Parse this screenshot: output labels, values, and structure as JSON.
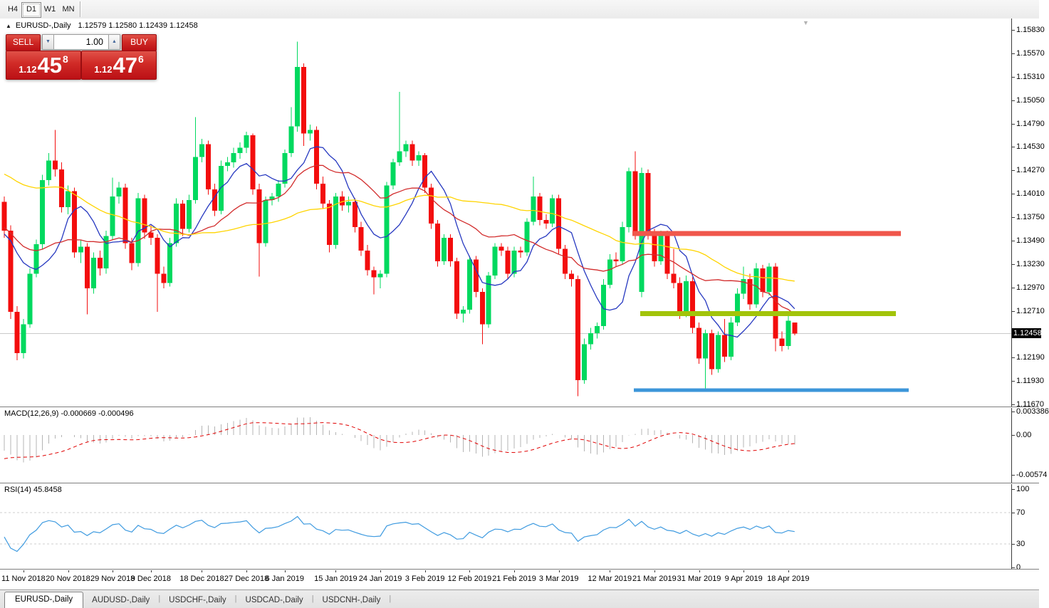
{
  "toolbar": {
    "timeframes": [
      {
        "label": "H4",
        "active": false
      },
      {
        "label": "D1",
        "active": true
      },
      {
        "label": "W1",
        "active": false
      },
      {
        "label": "MN",
        "active": false
      }
    ]
  },
  "header": {
    "collapse_icon": "▲",
    "symbol": "EURUSD-,Daily",
    "ohlc": "1.12579 1.12580 1.12439 1.12458"
  },
  "trade": {
    "sell_label": "SELL",
    "buy_label": "BUY",
    "volume": "1.00",
    "sell_quote": {
      "prefix": "1.12",
      "big": "45",
      "sup": "8"
    },
    "buy_quote": {
      "prefix": "1.12",
      "big": "47",
      "sup": "6"
    }
  },
  "price_scale": {
    "ticks": [
      "1.15830",
      "1.15570",
      "1.15310",
      "1.15050",
      "1.14790",
      "1.14530",
      "1.14270",
      "1.14010",
      "1.13750",
      "1.13490",
      "1.13230",
      "1.12970",
      "1.12710",
      "1.12190",
      "1.11930",
      "1.11670"
    ],
    "current": "1.12458"
  },
  "macd": {
    "label": "MACD(12,26,9)",
    "values": "-0.000669 -0.000496",
    "fast": 12,
    "slow": 26,
    "signal": 9,
    "ticks": [
      {
        "v": 0.003386,
        "label": "0.003386"
      },
      {
        "v": 0,
        "label": "0.00"
      },
      {
        "v": -0.00574,
        "label": "-0.00574"
      }
    ]
  },
  "rsi": {
    "label": "RSI(14)",
    "value": "45.8458",
    "period": 14,
    "levels": [
      70,
      30
    ],
    "ticks": [
      {
        "v": 100,
        "label": "100"
      },
      {
        "v": 70,
        "label": "70"
      },
      {
        "v": 30,
        "label": "30"
      },
      {
        "v": 0,
        "label": "0"
      }
    ]
  },
  "tabs": [
    {
      "label": "EURUSD-,Daily",
      "active": true
    },
    {
      "label": "AUDUSD-,Daily",
      "active": false
    },
    {
      "label": "USDCHF-,Daily",
      "active": false
    },
    {
      "label": "USDCAD-,Daily",
      "active": false
    },
    {
      "label": "USDCNH-,Daily",
      "active": false
    }
  ],
  "chart_data": {
    "type": "candlestick",
    "symbol": "EURUSD-,Daily",
    "title": "EURUSD-,Daily 1.12579 1.12580 1.12439 1.12458",
    "price_axis": {
      "min": 1.1167,
      "max": 1.1583,
      "step": 0.0026
    },
    "current_price": 1.12458,
    "x_ticks": [
      {
        "i": 3,
        "label": "11 Nov 2018"
      },
      {
        "i": 10,
        "label": "20 Nov 2018"
      },
      {
        "i": 17,
        "label": "29 Nov 2018"
      },
      {
        "i": 23,
        "label": "9 Dec 2018"
      },
      {
        "i": 31,
        "label": "18 Dec 2018"
      },
      {
        "i": 38,
        "label": "27 Dec 2018"
      },
      {
        "i": 44,
        "label": "6 Jan 2019"
      },
      {
        "i": 52,
        "label": "15 Jan 2019"
      },
      {
        "i": 59,
        "label": "24 Jan 2019"
      },
      {
        "i": 66,
        "label": "3 Feb 2019"
      },
      {
        "i": 73,
        "label": "12 Feb 2019"
      },
      {
        "i": 80,
        "label": "21 Feb 2019"
      },
      {
        "i": 87,
        "label": "3 Mar 2019"
      },
      {
        "i": 95,
        "label": "12 Mar 2019"
      },
      {
        "i": 102,
        "label": "21 Mar 2019"
      },
      {
        "i": 109,
        "label": "31 Mar 2019"
      },
      {
        "i": 116,
        "label": "9 Apr 2019"
      },
      {
        "i": 123,
        "label": "18 Apr 2019"
      }
    ],
    "candles": [
      [
        1.1392,
        1.1398,
        1.1352,
        1.136
      ],
      [
        1.136,
        1.1366,
        1.1262,
        1.127
      ],
      [
        1.127,
        1.1276,
        1.1216,
        1.1224
      ],
      [
        1.1224,
        1.1262,
        1.1218,
        1.1256
      ],
      [
        1.1256,
        1.1318,
        1.1252,
        1.1312
      ],
      [
        1.1312,
        1.135,
        1.1308,
        1.1345
      ],
      [
        1.1345,
        1.1422,
        1.134,
        1.1416
      ],
      [
        1.1416,
        1.1446,
        1.141,
        1.1438
      ],
      [
        1.1438,
        1.1472,
        1.142,
        1.1428
      ],
      [
        1.1428,
        1.1436,
        1.138,
        1.1386
      ],
      [
        1.1386,
        1.141,
        1.1378,
        1.1404
      ],
      [
        1.1404,
        1.1408,
        1.133,
        1.1336
      ],
      [
        1.1336,
        1.135,
        1.1324,
        1.1342
      ],
      [
        1.1342,
        1.1346,
        1.1267,
        1.1296
      ],
      [
        1.1296,
        1.1336,
        1.129,
        1.133
      ],
      [
        1.133,
        1.1338,
        1.131,
        1.1318
      ],
      [
        1.1318,
        1.136,
        1.1312,
        1.1354
      ],
      [
        1.1354,
        1.1419,
        1.135,
        1.1398
      ],
      [
        1.1398,
        1.1414,
        1.139,
        1.1408
      ],
      [
        1.1408,
        1.1412,
        1.134,
        1.1346
      ],
      [
        1.1346,
        1.1352,
        1.1316,
        1.1324
      ],
      [
        1.1324,
        1.1402,
        1.132,
        1.1396
      ],
      [
        1.1396,
        1.14,
        1.1351,
        1.1358
      ],
      [
        1.1358,
        1.1366,
        1.1344,
        1.1352
      ],
      [
        1.1352,
        1.1356,
        1.127,
        1.1312
      ],
      [
        1.1312,
        1.132,
        1.1296,
        1.1302
      ],
      [
        1.1302,
        1.1352,
        1.1298,
        1.1346
      ],
      [
        1.1346,
        1.1396,
        1.1342,
        1.139
      ],
      [
        1.139,
        1.1394,
        1.1354,
        1.1362
      ],
      [
        1.1362,
        1.14,
        1.1358,
        1.1394
      ],
      [
        1.1394,
        1.1486,
        1.139,
        1.1442
      ],
      [
        1.1442,
        1.1462,
        1.1436,
        1.1456
      ],
      [
        1.1456,
        1.146,
        1.14,
        1.1406
      ],
      [
        1.1406,
        1.1412,
        1.1376,
        1.1382
      ],
      [
        1.1382,
        1.1438,
        1.1378,
        1.1432
      ],
      [
        1.1432,
        1.1442,
        1.1426,
        1.1436
      ],
      [
        1.1436,
        1.1452,
        1.143,
        1.1446
      ],
      [
        1.1446,
        1.1458,
        1.144,
        1.1452
      ],
      [
        1.1452,
        1.147,
        1.1446,
        1.1466
      ],
      [
        1.1466,
        1.1468,
        1.14,
        1.1406
      ],
      [
        1.1406,
        1.1412,
        1.1309,
        1.1346
      ],
      [
        1.1346,
        1.1398,
        1.1342,
        1.1394
      ],
      [
        1.1394,
        1.1402,
        1.1388,
        1.1398
      ],
      [
        1.1398,
        1.1416,
        1.1392,
        1.1412
      ],
      [
        1.1412,
        1.145,
        1.1408,
        1.1446
      ],
      [
        1.1446,
        1.1497,
        1.1442,
        1.1476
      ],
      [
        1.1476,
        1.157,
        1.147,
        1.1542
      ],
      [
        1.1542,
        1.1546,
        1.1454,
        1.1468
      ],
      [
        1.1468,
        1.1478,
        1.146,
        1.1472
      ],
      [
        1.1472,
        1.1476,
        1.1406,
        1.1412
      ],
      [
        1.1412,
        1.142,
        1.1384,
        1.139
      ],
      [
        1.139,
        1.1394,
        1.1336,
        1.1344
      ],
      [
        1.1344,
        1.1402,
        1.134,
        1.1398
      ],
      [
        1.1398,
        1.1404,
        1.1382,
        1.1388
      ],
      [
        1.1388,
        1.1398,
        1.138,
        1.1392
      ],
      [
        1.1392,
        1.1396,
        1.1358,
        1.1364
      ],
      [
        1.1364,
        1.137,
        1.1332,
        1.1338
      ],
      [
        1.1338,
        1.1344,
        1.131,
        1.1316
      ],
      [
        1.1316,
        1.132,
        1.1289,
        1.1308
      ],
      [
        1.1308,
        1.1316,
        1.1296,
        1.1312
      ],
      [
        1.1312,
        1.1414,
        1.1308,
        1.141
      ],
      [
        1.141,
        1.144,
        1.1406,
        1.1436
      ],
      [
        1.1436,
        1.1514,
        1.1432,
        1.1448
      ],
      [
        1.1448,
        1.146,
        1.1442,
        1.1456
      ],
      [
        1.1456,
        1.146,
        1.1432,
        1.1438
      ],
      [
        1.1438,
        1.1448,
        1.1432,
        1.1444
      ],
      [
        1.1444,
        1.1446,
        1.1402,
        1.1408
      ],
      [
        1.1408,
        1.1412,
        1.1362,
        1.1368
      ],
      [
        1.1368,
        1.1372,
        1.132,
        1.1326
      ],
      [
        1.1326,
        1.1356,
        1.1322,
        1.1352
      ],
      [
        1.1352,
        1.1356,
        1.132,
        1.1326
      ],
      [
        1.1326,
        1.133,
        1.1262,
        1.1268
      ],
      [
        1.1268,
        1.1276,
        1.1258,
        1.1272
      ],
      [
        1.1272,
        1.1332,
        1.1268,
        1.1328
      ],
      [
        1.1328,
        1.1332,
        1.1286,
        1.1292
      ],
      [
        1.1292,
        1.1296,
        1.1234,
        1.1256
      ],
      [
        1.1256,
        1.1314,
        1.1252,
        1.131
      ],
      [
        1.131,
        1.1346,
        1.1306,
        1.1342
      ],
      [
        1.1342,
        1.1346,
        1.1332,
        1.1338
      ],
      [
        1.1338,
        1.1342,
        1.1306,
        1.1312
      ],
      [
        1.1312,
        1.1342,
        1.1308,
        1.1338
      ],
      [
        1.1338,
        1.1342,
        1.133,
        1.1336
      ],
      [
        1.1336,
        1.1374,
        1.1332,
        1.137
      ],
      [
        1.137,
        1.142,
        1.1366,
        1.1398
      ],
      [
        1.1398,
        1.1402,
        1.1366,
        1.1372
      ],
      [
        1.1372,
        1.1378,
        1.1362,
        1.1368
      ],
      [
        1.1368,
        1.14,
        1.1364,
        1.1396
      ],
      [
        1.1396,
        1.14,
        1.1334,
        1.134
      ],
      [
        1.134,
        1.1344,
        1.1306,
        1.1312
      ],
      [
        1.1312,
        1.1316,
        1.1298,
        1.1306
      ],
      [
        1.1306,
        1.131,
        1.1176,
        1.1194
      ],
      [
        1.1194,
        1.124,
        1.119,
        1.1234
      ],
      [
        1.1234,
        1.1252,
        1.1228,
        1.1246
      ],
      [
        1.1246,
        1.1258,
        1.124,
        1.1254
      ],
      [
        1.1254,
        1.1306,
        1.125,
        1.13
      ],
      [
        1.13,
        1.1334,
        1.1296,
        1.1328
      ],
      [
        1.1328,
        1.1336,
        1.132,
        1.1326
      ],
      [
        1.1326,
        1.137,
        1.1322,
        1.1364
      ],
      [
        1.1364,
        1.143,
        1.1358,
        1.1426
      ],
      [
        1.1426,
        1.1448,
        1.135,
        1.1356
      ],
      [
        1.1292,
        1.143,
        1.1286,
        1.1424
      ],
      [
        1.1424,
        1.1428,
        1.135,
        1.1358
      ],
      [
        1.1358,
        1.1362,
        1.132,
        1.1326
      ],
      [
        1.1326,
        1.136,
        1.1322,
        1.1356
      ],
      [
        1.1356,
        1.136,
        1.1306,
        1.1312
      ],
      [
        1.1312,
        1.134,
        1.1296,
        1.1302
      ],
      [
        1.1302,
        1.1308,
        1.1262,
        1.1268
      ],
      [
        1.1268,
        1.131,
        1.1264,
        1.1304
      ],
      [
        1.1304,
        1.1308,
        1.1246,
        1.1252
      ],
      [
        1.1252,
        1.1258,
        1.1212,
        1.1218
      ],
      [
        1.1218,
        1.125,
        1.1184,
        1.1246
      ],
      [
        1.1246,
        1.125,
        1.12,
        1.1206
      ],
      [
        1.1206,
        1.1248,
        1.1202,
        1.1244
      ],
      [
        1.1244,
        1.1262,
        1.1214,
        1.122
      ],
      [
        1.122,
        1.1264,
        1.1216,
        1.1258
      ],
      [
        1.1258,
        1.1296,
        1.1254,
        1.129
      ],
      [
        1.129,
        1.132,
        1.1284,
        1.1306
      ],
      [
        1.1306,
        1.1312,
        1.1272,
        1.1278
      ],
      [
        1.1278,
        1.1324,
        1.1274,
        1.1318
      ],
      [
        1.1318,
        1.1322,
        1.1286,
        1.1292
      ],
      [
        1.1292,
        1.1324,
        1.1288,
        1.132
      ],
      [
        1.132,
        1.1324,
        1.1226,
        1.124
      ],
      [
        1.124,
        1.1248,
        1.1226,
        1.1232
      ],
      [
        1.1232,
        1.1266,
        1.1228,
        1.126
      ],
      [
        1.12579,
        1.1258,
        1.12439,
        1.12458
      ]
    ],
    "warmup_closes": [
      1.1576,
      1.156,
      1.1548,
      1.1536,
      1.1544,
      1.1528,
      1.1512,
      1.1496,
      1.1502,
      1.1488,
      1.1472,
      1.1458,
      1.1468,
      1.1452,
      1.1438,
      1.1446,
      1.143,
      1.1418,
      1.1408,
      1.1416,
      1.1404,
      1.1392,
      1.1398,
      1.1384,
      1.1374,
      1.138,
      1.1366,
      1.1356,
      1.1362,
      1.1348,
      1.134,
      1.1346,
      1.1336,
      1.1328,
      1.1334,
      1.1342,
      1.1352,
      1.1366,
      1.1378,
      1.139
    ],
    "moving_averages": [
      {
        "period": 8,
        "color": "#2638c0"
      },
      {
        "period": 21,
        "color": "#d22c2c"
      },
      {
        "period": 50,
        "color": "#ffd400"
      }
    ],
    "objects": {
      "hlines": [
        {
          "price": 1.1357,
          "x1": 888,
          "x2": 1265,
          "color": "#f0564b",
          "thickness": 7
        },
        {
          "price": 1.1268,
          "x1": 899,
          "x2": 1258,
          "color": "#a2c40a",
          "thickness": 7
        },
        {
          "price": 1.1183,
          "x1": 890,
          "x2": 1276,
          "color": "#3c96d9",
          "thickness": 5
        }
      ],
      "bid_line": {
        "price": 1.12458,
        "color": "#c9c9c9"
      }
    },
    "colors": {
      "bull": "#00d95f",
      "bear": "#f30d0d",
      "macd_hist": "#b4b4b4",
      "macd_signal": "#e00000",
      "rsi_line": "#3f9be0",
      "level_dash": "#cfcfcf"
    },
    "legend_position": "none",
    "grid": false,
    "shift_marker_x": 1133
  }
}
